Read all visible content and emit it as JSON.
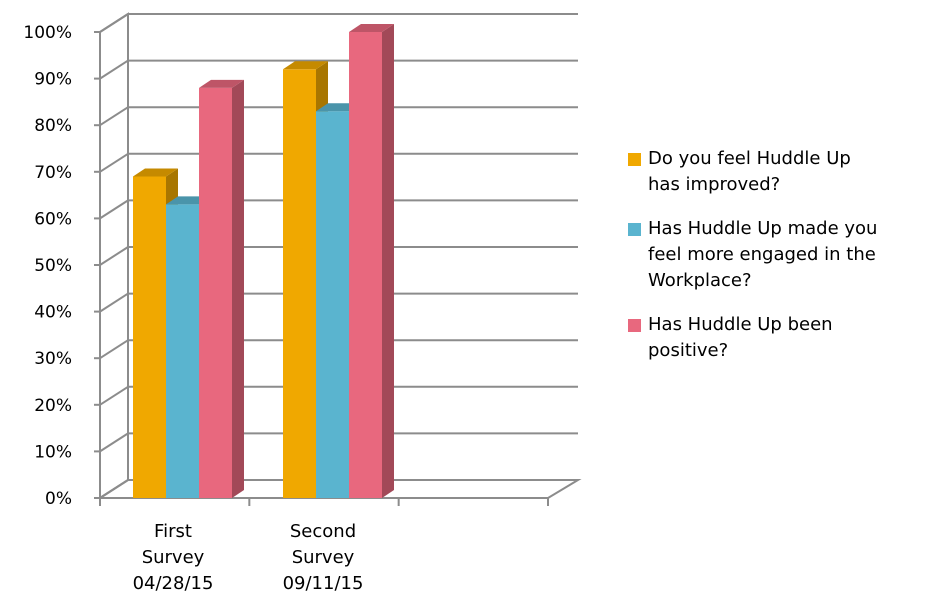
{
  "chart_data": {
    "type": "bar",
    "style": "3d-clustered-column",
    "categories": [
      [
        "First",
        "Survey",
        "04/28/15"
      ],
      [
        "Second",
        "Survey",
        "09/11/15"
      ]
    ],
    "series": [
      {
        "name": "Do you feel Huddle Up has improved?",
        "color": "#F0A800",
        "values": [
          69,
          92
        ]
      },
      {
        "name": "Has Huddle Up made you feel more engaged in the Workplace?",
        "color": "#5AB4CF",
        "values": [
          63,
          83
        ]
      },
      {
        "name": "Has Huddle Up been positive?",
        "color": "#E8687E",
        "values": [
          88,
          100
        ]
      }
    ],
    "yticks": [
      "0%",
      "10%",
      "20%",
      "30%",
      "40%",
      "50%",
      "60%",
      "70%",
      "80%",
      "90%",
      "100%"
    ],
    "ylim": [
      0,
      100
    ],
    "grid": true,
    "legend": {
      "position": "right",
      "items": [
        [
          "Do you feel Huddle Up",
          "has improved?"
        ],
        [
          "Has Huddle Up made you",
          "feel more engaged in the",
          "Workplace?"
        ],
        [
          "Has Huddle Up been",
          "positive?"
        ]
      ]
    }
  }
}
